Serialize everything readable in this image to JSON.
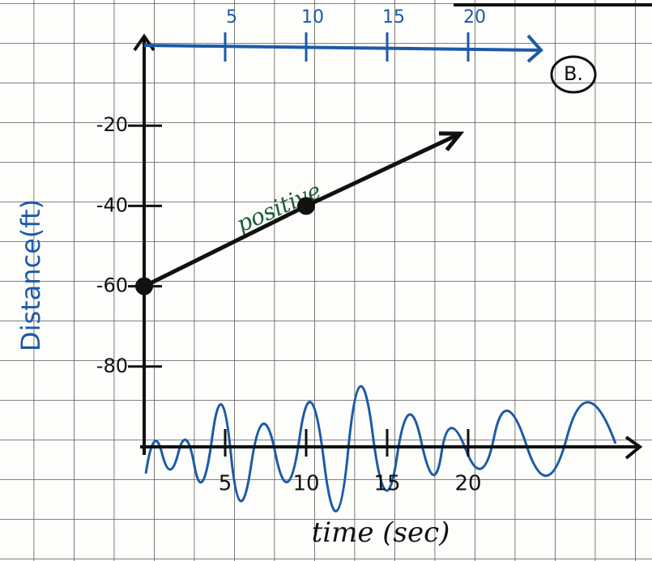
{
  "chart_data": {
    "type": "line",
    "xlabel": "time (sec)",
    "ylabel": "Distance(ft)",
    "annotations": [
      "B.",
      "positive"
    ],
    "x": [
      0,
      10,
      19.5
    ],
    "series": [
      {
        "color": "#111111",
        "values": [
          -60,
          -40,
          -22
        ]
      }
    ],
    "xlim": [
      0,
      30
    ],
    "ylim": [
      -100,
      0
    ],
    "xticks": [
      5,
      10,
      15,
      20
    ],
    "yticks": [
      -80,
      -60,
      -40,
      -20
    ]
  }
}
